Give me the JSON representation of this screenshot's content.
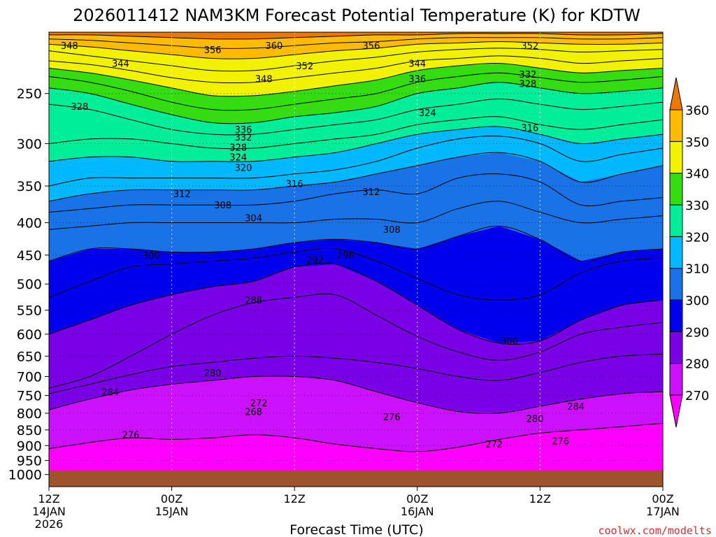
{
  "chart_data": {
    "type": "heatmap",
    "title": "2026011412 NAM3KM Forecast Potential Temperature (K) for KDTW",
    "xlabel": "Forecast Time (UTC)",
    "ylabel": "",
    "credit": "coolwx.com/modelts",
    "x_ticks": [
      {
        "hours": 0,
        "line1": "12Z",
        "line2": "14JAN",
        "line3": "2026"
      },
      {
        "hours": 12,
        "line1": "00Z",
        "line2": "15JAN",
        "line3": ""
      },
      {
        "hours": 24,
        "line1": "12Z",
        "line2": "",
        "line3": ""
      },
      {
        "hours": 36,
        "line1": "00Z",
        "line2": "16JAN",
        "line3": ""
      },
      {
        "hours": 48,
        "line1": "12Z",
        "line2": "",
        "line3": ""
      },
      {
        "hours": 60,
        "line1": "00Z",
        "line2": "17JAN",
        "line3": ""
      }
    ],
    "xlim_hours": [
      0,
      60
    ],
    "y_axis": "pressure (hPa), log scale, inverted",
    "ylim_hpa": [
      1045,
      200
    ],
    "y_ticks": [
      250,
      300,
      350,
      400,
      450,
      500,
      550,
      600,
      650,
      700,
      750,
      800,
      850,
      900,
      950,
      1000
    ],
    "surface_hpa": 985,
    "colorbar": {
      "levels": [
        270,
        280,
        290,
        300,
        310,
        320,
        330,
        340,
        350,
        360
      ],
      "labels": [
        "270",
        "280",
        "290",
        "300",
        "310",
        "320",
        "330",
        "340",
        "350",
        "360"
      ],
      "bands": [
        {
          "from": 260,
          "to": 270,
          "color": "#ff00ff"
        },
        {
          "from": 270,
          "to": 280,
          "color": "#cc11ff"
        },
        {
          "from": 280,
          "to": 290,
          "color": "#7a00e6"
        },
        {
          "from": 290,
          "to": 300,
          "color": "#0000ee"
        },
        {
          "from": 300,
          "to": 310,
          "color": "#1a73e6"
        },
        {
          "from": 310,
          "to": 320,
          "color": "#00b8ff"
        },
        {
          "from": 320,
          "to": 330,
          "color": "#00ee99"
        },
        {
          "from": 330,
          "to": 340,
          "color": "#33dd11"
        },
        {
          "from": 340,
          "to": 350,
          "color": "#f2f200"
        },
        {
          "from": 350,
          "to": 360,
          "color": "#ffbb00"
        },
        {
          "from": 360,
          "to": 370,
          "color": "#ee7700"
        }
      ]
    },
    "surface_color": "#a0522d",
    "contour_interval_K": 2,
    "isentropes": [
      {
        "theta": 276,
        "p_hpa": [
          910,
          890,
          875,
          880,
          875,
          865,
          875,
          895,
          910,
          920,
          905,
          880,
          860,
          850,
          840,
          830
        ]
      },
      {
        "theta": 280,
        "p_hpa": [
          790,
          760,
          735,
          720,
          710,
          700,
          700,
          710,
          740,
          770,
          795,
          800,
          780,
          760,
          745,
          740
        ]
      },
      {
        "theta": 284,
        "p_hpa": [
          745,
          720,
          695,
          675,
          665,
          655,
          650,
          655,
          665,
          680,
          700,
          710,
          690,
          665,
          650,
          645
        ]
      },
      {
        "theta": 288,
        "p_hpa": [
          730,
          700,
          650,
          600,
          560,
          535,
          525,
          520,
          560,
          605,
          640,
          660,
          640,
          600,
          585,
          575
        ]
      },
      {
        "theta": 292,
        "p_hpa": [
          600,
          570,
          540,
          520,
          505,
          495,
          470,
          465,
          495,
          540,
          590,
          620,
          615,
          570,
          540,
          530
        ]
      },
      {
        "theta": 296,
        "p_hpa": [
          525,
          495,
          470,
          465,
          460,
          455,
          445,
          440,
          460,
          490,
          520,
          530,
          520,
          480,
          460,
          455
        ]
      },
      {
        "theta": 300,
        "p_hpa": [
          460,
          440,
          440,
          445,
          445,
          440,
          430,
          425,
          430,
          440,
          420,
          405,
          425,
          460,
          445,
          440
        ]
      },
      {
        "theta": 304,
        "p_hpa": [
          410,
          405,
          400,
          400,
          400,
          400,
          400,
          395,
          395,
          400,
          380,
          370,
          385,
          400,
          395,
          390
        ]
      },
      {
        "theta": 308,
        "p_hpa": [
          385,
          380,
          375,
          375,
          375,
          375,
          370,
          360,
          355,
          360,
          340,
          335,
          345,
          375,
          370,
          365
        ]
      },
      {
        "theta": 312,
        "p_hpa": [
          370,
          360,
          355,
          355,
          355,
          355,
          350,
          345,
          335,
          325,
          315,
          310,
          320,
          345,
          335,
          325
        ]
      },
      {
        "theta": 316,
        "p_hpa": [
          350,
          340,
          340,
          340,
          340,
          340,
          335,
          330,
          320,
          305,
          295,
          292,
          300,
          320,
          312,
          305
        ]
      },
      {
        "theta": 320,
        "p_hpa": [
          320,
          315,
          315,
          320,
          320,
          320,
          315,
          310,
          300,
          290,
          285,
          282,
          290,
          300,
          295,
          290
        ]
      },
      {
        "theta": 324,
        "p_hpa": [
          300,
          295,
          295,
          300,
          305,
          305,
          300,
          295,
          290,
          280,
          275,
          272,
          280,
          285,
          280,
          275
        ]
      },
      {
        "theta": 328,
        "p_hpa": [
          260,
          265,
          275,
          285,
          290,
          290,
          285,
          280,
          275,
          265,
          260,
          255,
          260,
          265,
          262,
          258
        ]
      },
      {
        "theta": 332,
        "p_hpa": [
          245,
          250,
          260,
          270,
          278,
          278,
          272,
          268,
          262,
          250,
          245,
          240,
          245,
          250,
          248,
          245
        ]
      },
      {
        "theta": 336,
        "p_hpa": [
          235,
          240,
          248,
          258,
          265,
          265,
          260,
          255,
          250,
          240,
          235,
          232,
          236,
          240,
          238,
          235
        ]
      },
      {
        "theta": 340,
        "p_hpa": [
          228,
          232,
          238,
          245,
          252,
          252,
          248,
          243,
          238,
          230,
          226,
          224,
          228,
          232,
          230,
          228
        ]
      },
      {
        "theta": 344,
        "p_hpa": [
          222,
          225,
          230,
          236,
          240,
          240,
          236,
          232,
          228,
          222,
          220,
          218,
          220,
          224,
          222,
          220
        ]
      },
      {
        "theta": 348,
        "p_hpa": [
          214,
          218,
          222,
          226,
          230,
          230,
          226,
          222,
          219,
          215,
          213,
          212,
          213,
          215,
          214,
          213
        ]
      },
      {
        "theta": 352,
        "p_hpa": [
          209,
          211,
          214,
          217,
          220,
          220,
          217,
          214,
          212,
          209,
          208,
          207,
          208,
          209,
          209,
          208
        ]
      },
      {
        "theta": 356,
        "p_hpa": [
          205,
          206,
          208,
          210,
          212,
          212,
          210,
          208,
          207,
          205,
          204,
          204,
          204,
          205,
          205,
          204
        ]
      },
      {
        "theta": 360,
        "p_hpa": [
          202,
          202,
          203,
          204,
          205,
          205,
          204,
          203,
          202,
          202,
          201,
          201,
          201,
          202,
          202,
          201
        ]
      }
    ],
    "contour_labels": [
      {
        "text": "348",
        "hours": 2.0,
        "p_hpa": 210
      },
      {
        "text": "356",
        "hours": 16.0,
        "p_hpa": 213
      },
      {
        "text": "360",
        "hours": 22.0,
        "p_hpa": 210
      },
      {
        "text": "356",
        "hours": 31.5,
        "p_hpa": 210
      },
      {
        "text": "352",
        "hours": 47.0,
        "p_hpa": 210
      },
      {
        "text": "344",
        "hours": 7.0,
        "p_hpa": 224
      },
      {
        "text": "352",
        "hours": 25.0,
        "p_hpa": 226
      },
      {
        "text": "344",
        "hours": 36.0,
        "p_hpa": 224
      },
      {
        "text": "332",
        "hours": 46.8,
        "p_hpa": 233
      },
      {
        "text": "348",
        "hours": 21.0,
        "p_hpa": 237
      },
      {
        "text": "336",
        "hours": 36.0,
        "p_hpa": 237
      },
      {
        "text": "328",
        "hours": 46.8,
        "p_hpa": 241
      },
      {
        "text": "328",
        "hours": 3.0,
        "p_hpa": 262
      },
      {
        "text": "324",
        "hours": 37.0,
        "p_hpa": 268
      },
      {
        "text": "316",
        "hours": 47.0,
        "p_hpa": 283
      },
      {
        "text": "336",
        "hours": 19.0,
        "p_hpa": 285
      },
      {
        "text": "332",
        "hours": 19.0,
        "p_hpa": 293
      },
      {
        "text": "328",
        "hours": 18.5,
        "p_hpa": 304
      },
      {
        "text": "324",
        "hours": 18.5,
        "p_hpa": 315
      },
      {
        "text": "320",
        "hours": 19.0,
        "p_hpa": 327
      },
      {
        "text": "316",
        "hours": 24.0,
        "p_hpa": 347
      },
      {
        "text": "312",
        "hours": 13.0,
        "p_hpa": 360
      },
      {
        "text": "312",
        "hours": 31.5,
        "p_hpa": 357
      },
      {
        "text": "308",
        "hours": 17.0,
        "p_hpa": 375
      },
      {
        "text": "304",
        "hours": 20.0,
        "p_hpa": 393
      },
      {
        "text": "308",
        "hours": 33.5,
        "p_hpa": 410
      },
      {
        "text": "300",
        "hours": 10.0,
        "p_hpa": 450
      },
      {
        "text": "292",
        "hours": 26.0,
        "p_hpa": 458
      },
      {
        "text": "296",
        "hours": 29.0,
        "p_hpa": 450
      },
      {
        "text": "288",
        "hours": 20.0,
        "p_hpa": 530
      },
      {
        "text": "300",
        "hours": 45.0,
        "p_hpa": 615
      },
      {
        "text": "280",
        "hours": 16.0,
        "p_hpa": 690
      },
      {
        "text": "284",
        "hours": 6.0,
        "p_hpa": 740
      },
      {
        "text": "272",
        "hours": 20.5,
        "p_hpa": 770
      },
      {
        "text": "268",
        "hours": 20.0,
        "p_hpa": 795
      },
      {
        "text": "276",
        "hours": 33.5,
        "p_hpa": 810
      },
      {
        "text": "284",
        "hours": 51.5,
        "p_hpa": 780
      },
      {
        "text": "280",
        "hours": 47.5,
        "p_hpa": 815
      },
      {
        "text": "276",
        "hours": 8.0,
        "p_hpa": 865
      },
      {
        "text": "272",
        "hours": 43.5,
        "p_hpa": 895
      },
      {
        "text": "276",
        "hours": 50.0,
        "p_hpa": 885
      }
    ]
  }
}
